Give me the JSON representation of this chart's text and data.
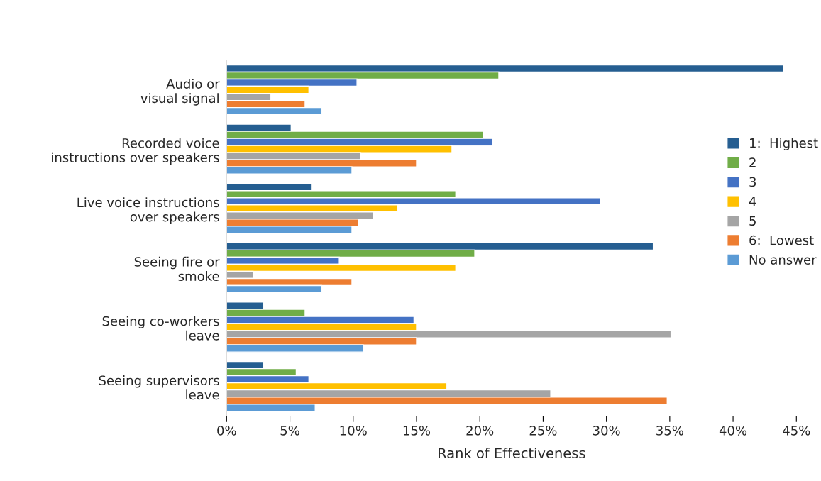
{
  "chart_data": {
    "type": "bar",
    "orientation": "horizontal",
    "xlabel": "Rank of Effectiveness",
    "categories": [
      "Audio or\nvisual signal",
      "Recorded voice\ninstructions over speakers",
      "Live voice instructions\nover speakers",
      "Seeing fire or\nsmoke",
      "Seeing co-workers\nleave",
      "Seeing supervisors\nleave"
    ],
    "series": [
      {
        "name": "1:  Highest",
        "color": "#255e91",
        "values": [
          44.0,
          5.1,
          6.7,
          33.7,
          2.9,
          2.9
        ]
      },
      {
        "name": "2",
        "color": "#70ad47",
        "values": [
          21.5,
          20.3,
          18.1,
          19.6,
          6.2,
          5.5
        ]
      },
      {
        "name": "3",
        "color": "#4472c4",
        "values": [
          10.3,
          21.0,
          29.5,
          8.9,
          14.8,
          6.5
        ]
      },
      {
        "name": "4",
        "color": "#ffc000",
        "values": [
          6.5,
          17.8,
          13.5,
          18.1,
          15.0,
          17.4
        ]
      },
      {
        "name": "5",
        "color": "#a5a5a5",
        "values": [
          3.5,
          10.6,
          11.6,
          2.1,
          35.1,
          25.6
        ]
      },
      {
        "name": "6:  Lowest",
        "color": "#ed7d31",
        "values": [
          6.2,
          15.0,
          10.4,
          9.9,
          15.0,
          34.8
        ]
      },
      {
        "name": "No answer",
        "color": "#5b9bd5",
        "values": [
          7.5,
          9.9,
          9.9,
          7.5,
          10.8,
          7.0
        ]
      }
    ],
    "xlim": [
      0,
      45
    ],
    "xticks": [
      {
        "value": 0,
        "label": "0%"
      },
      {
        "value": 5,
        "label": "5%"
      },
      {
        "value": 10,
        "label": "10%"
      },
      {
        "value": 15,
        "label": "15%"
      },
      {
        "value": 20,
        "label": "20%"
      },
      {
        "value": 25,
        "label": "25%"
      },
      {
        "value": 30,
        "label": "30%"
      },
      {
        "value": 35,
        "label": "35%"
      },
      {
        "value": 40,
        "label": "40%"
      },
      {
        "value": 45,
        "label": "45%"
      }
    ],
    "grid": false,
    "legend": "right"
  }
}
